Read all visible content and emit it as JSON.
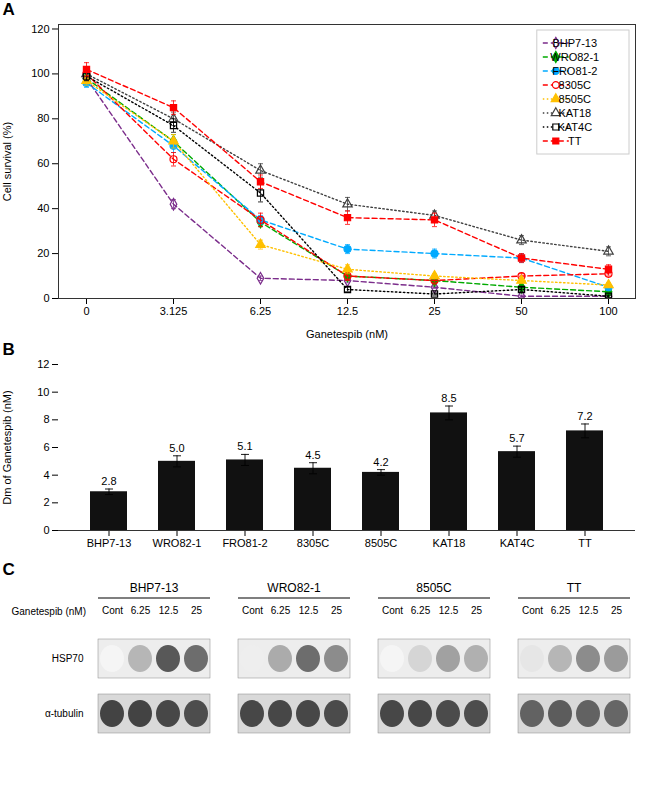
{
  "chart_data": [
    {
      "type": "line",
      "title": "A",
      "categories": [
        "0",
        "3.125",
        "6.25",
        "12.5",
        "25",
        "50",
        "100"
      ],
      "xlabel": "Ganetespib (nM)",
      "ylabel": "Cell survival (%)",
      "ylim": [
        0,
        122
      ],
      "yticks": [
        0,
        20,
        40,
        60,
        80,
        100,
        120
      ],
      "legend": "upper right",
      "series": [
        {
          "name": "BHP7-13",
          "color": "#7B2D8B",
          "line_style": "dashed",
          "marker": "diamond-open",
          "values": [
            98,
            42,
            9,
            8,
            5,
            1,
            1
          ],
          "errors": [
            2,
            2,
            1,
            1,
            0.5,
            0.5,
            0.5
          ]
        },
        {
          "name": "WRO82-1",
          "color": "#00AA00",
          "line_style": "dashed",
          "marker": "diamond",
          "values": [
            98,
            70,
            34,
            10,
            8,
            5,
            3
          ],
          "errors": [
            2,
            3,
            2,
            1,
            1,
            0.5,
            0.5
          ]
        },
        {
          "name": "FRO81-2",
          "color": "#00AAFF",
          "line_style": "dashed",
          "marker": "circle",
          "values": [
            96,
            68,
            35,
            22,
            20,
            18,
            5
          ],
          "errors": [
            2,
            3,
            2,
            2,
            2,
            2,
            1
          ]
        },
        {
          "name": "8305C",
          "color": "#FF0000",
          "line_style": "dashed",
          "marker": "circle-open",
          "values": [
            100,
            62,
            35,
            10,
            8,
            10,
            11
          ],
          "errors": [
            3,
            3,
            3,
            2,
            1,
            1,
            1
          ]
        },
        {
          "name": "8505C",
          "color": "#FFC000",
          "line_style": "dotted",
          "marker": "triangle",
          "values": [
            97,
            70,
            24,
            13,
            10,
            8,
            6
          ],
          "errors": [
            2,
            3,
            2,
            2,
            1,
            1,
            1
          ]
        },
        {
          "name": "KAT18",
          "color": "#404040",
          "line_style": "dotted",
          "marker": "triangle-open",
          "values": [
            100,
            80,
            57,
            42,
            37,
            26,
            21
          ],
          "errors": [
            3,
            3,
            3,
            3,
            2,
            2,
            2
          ]
        },
        {
          "name": "KAT4C",
          "color": "#000000",
          "line_style": "dotted",
          "marker": "square-open",
          "values": [
            99,
            77,
            47,
            4,
            2,
            4,
            1
          ],
          "errors": [
            2,
            3,
            4,
            1,
            0.5,
            1,
            0.5
          ]
        },
        {
          "name": "TT",
          "color": "#FF0000",
          "line_style": "dashed",
          "marker": "square",
          "values": [
            102,
            85,
            52,
            36,
            35,
            18,
            13
          ],
          "errors": [
            3,
            3,
            3,
            3,
            3,
            2,
            2
          ]
        }
      ]
    },
    {
      "type": "bar",
      "title": "B",
      "categories": [
        "BHP7-13",
        "WRO82-1",
        "FRO81-2",
        "8305C",
        "8505C",
        "KAT18",
        "KAT4C",
        "TT"
      ],
      "values": [
        2.8,
        5.0,
        5.1,
        4.5,
        4.2,
        8.5,
        5.7,
        7.2
      ],
      "errors": [
        0.2,
        0.4,
        0.4,
        0.4,
        0.2,
        0.5,
        0.4,
        0.5
      ],
      "value_labels": [
        "2.8",
        "5.0",
        "5.1",
        "4.5",
        "4.2",
        "8.5",
        "5.7",
        "7.2"
      ],
      "data_labels": true,
      "color": "#111111",
      "ylabel": "Dm of Ganetespib (nM)",
      "ylim": [
        0,
        12
      ],
      "yticks": [
        0,
        2,
        4,
        6,
        8,
        10,
        12
      ]
    },
    {
      "type": "heatmap",
      "title": "C",
      "groups": [
        "BHP7-13",
        "WRO82-1",
        "8505C",
        "TT"
      ],
      "categories": [
        "Cont",
        "6.25",
        "12.5",
        "25"
      ],
      "xlabel": "Ganetespib (nM)",
      "series": [
        {
          "name": "HSP70",
          "values": [
            [
              0.05,
              0.35,
              0.8,
              0.7
            ],
            [
              0.08,
              0.4,
              0.7,
              0.55
            ],
            [
              0.05,
              0.2,
              0.45,
              0.38
            ],
            [
              0.12,
              0.35,
              0.55,
              0.48
            ]
          ]
        },
        {
          "name": "α-tubulin",
          "values": [
            [
              0.9,
              0.9,
              0.88,
              0.85
            ],
            [
              0.88,
              0.88,
              0.88,
              0.86
            ],
            [
              0.88,
              0.88,
              0.86,
              0.85
            ],
            [
              0.75,
              0.78,
              0.75,
              0.73
            ]
          ]
        }
      ]
    }
  ]
}
